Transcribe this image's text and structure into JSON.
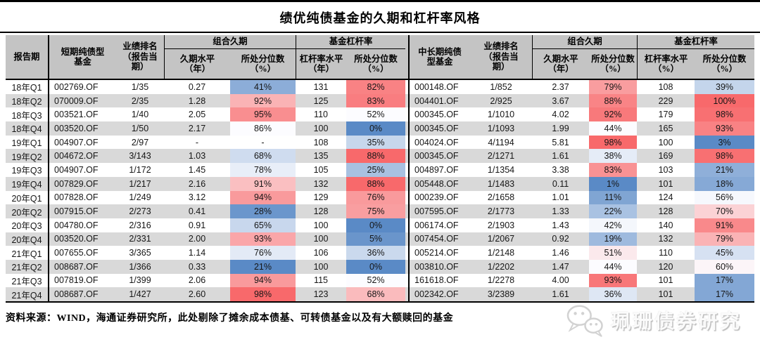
{
  "title": "绩优纯债基金的久期和杠杆率风格",
  "source_note": "资料来源：WIND，海通证券研究所，此处剔除了摊余成本债基、可转债基金以及有大额赎回的基金",
  "watermark": {
    "icon": "wechat-icon",
    "text": "珮珊债券研究"
  },
  "colors": {
    "scale_low": "#5A8AC6",
    "scale_mid": "#FCFCFF",
    "scale_high": "#F8696B",
    "header_bg": "#C4C4C4",
    "stripe_bg": "#D9D9D9",
    "rule": "#000000"
  },
  "table": {
    "headers": {
      "period": "报告期",
      "left": {
        "fund": "短期纯债型\n基金",
        "rank": "业绩排名\n（报告当\n期）",
        "dur_group": "组合久期",
        "dur_level": "久期水平\n（年）",
        "dur_pct": "所处分位数\n（%）",
        "lev_group": "基金杠杆率",
        "lev_level": "杠杆率水平\n（年）",
        "lev_pct": "所处分位数\n（%）"
      },
      "right": {
        "fund": "中长期纯债\n型基金",
        "rank": "业绩排名\n（报告当\n期）",
        "dur_group": "组合久期",
        "dur_level": "久期水平\n（年）",
        "dur_pct": "所处分位数\n（%）",
        "lev_group": "基金杠杆率",
        "lev_level": "杠杆率水平\n（%）",
        "lev_pct": "所处分位数\n（%）"
      }
    },
    "rows": [
      {
        "period": "18年Q1",
        "s": {
          "code": "002769.OF",
          "rank": "1/35",
          "dur": "0.27",
          "dur_pct": 41,
          "lev": "131",
          "lev_pct": 82
        },
        "l": {
          "code": "000148.OF",
          "rank": "1/852",
          "dur": "2.37",
          "dur_pct": 79,
          "lev": "108",
          "lev_pct": 39
        }
      },
      {
        "period": "18年Q2",
        "s": {
          "code": "070009.OF",
          "rank": "2/35",
          "dur": "1.28",
          "dur_pct": 92,
          "lev": "125",
          "lev_pct": 83
        },
        "l": {
          "code": "004401.OF",
          "rank": "2/925",
          "dur": "3.67",
          "dur_pct": 88,
          "lev": "229",
          "lev_pct": 100
        }
      },
      {
        "period": "18年Q3",
        "s": {
          "code": "003521.OF",
          "rank": "1/40",
          "dur": "2.05",
          "dur_pct": 95,
          "lev": "110",
          "lev_pct": 52
        },
        "l": {
          "code": "000345.OF",
          "rank": "1/1010",
          "dur": "4.02",
          "dur_pct": 92,
          "lev": "179",
          "lev_pct": 98
        }
      },
      {
        "period": "18年Q4",
        "s": {
          "code": "003520.OF",
          "rank": "1/50",
          "dur": "2.17",
          "dur_pct": 86,
          "lev": "100",
          "lev_pct": 0
        },
        "l": {
          "code": "000345.OF",
          "rank": "1/1093",
          "dur": "1.99",
          "dur_pct": 44,
          "lev": "165",
          "lev_pct": 93
        }
      },
      {
        "period": "19年Q1",
        "s": {
          "code": "004907.OF",
          "rank": "2/97",
          "dur": "-",
          "dur_pct": null,
          "lev": "108",
          "lev_pct": 35
        },
        "l": {
          "code": "004024.OF",
          "rank": "4/1194",
          "dur": "5.81",
          "dur_pct": 98,
          "lev": "100",
          "lev_pct": 3
        }
      },
      {
        "period": "19年Q2",
        "s": {
          "code": "004672.OF",
          "rank": "3/143",
          "dur": "1.03",
          "dur_pct": 68,
          "lev": "135",
          "lev_pct": 88
        },
        "l": {
          "code": "000345.OF",
          "rank": "2/1271",
          "dur": "1.61",
          "dur_pct": 38,
          "lev": "169",
          "lev_pct": 98
        }
      },
      {
        "period": "19年Q3",
        "s": {
          "code": "004907.OF",
          "rank": "1/172",
          "dur": "1.45",
          "dur_pct": 78,
          "lev": "105",
          "lev_pct": 25
        },
        "l": {
          "code": "004897.OF",
          "rank": "1/1354",
          "dur": "3.38",
          "dur_pct": 83,
          "lev": "103",
          "lev_pct": 21
        }
      },
      {
        "period": "19年Q4",
        "s": {
          "code": "007829.OF",
          "rank": "1/217",
          "dur": "2.16",
          "dur_pct": 91,
          "lev": "132",
          "lev_pct": 88
        },
        "l": {
          "code": "005448.OF",
          "rank": "1/1483",
          "dur": "0.11",
          "dur_pct": 1,
          "lev": "101",
          "lev_pct": 18
        }
      },
      {
        "period": "20年Q1",
        "s": {
          "code": "007828.OF",
          "rank": "1/249",
          "dur": "3.12",
          "dur_pct": 94,
          "lev": "129",
          "lev_pct": 76
        },
        "l": {
          "code": "000239.OF",
          "rank": "2/1658",
          "dur": "1.01",
          "dur_pct": 11,
          "lev": "124",
          "lev_pct": 56
        }
      },
      {
        "period": "20年Q2",
        "s": {
          "code": "007915.OF",
          "rank": "2/273",
          "dur": "0.41",
          "dur_pct": 28,
          "lev": "128",
          "lev_pct": 75
        },
        "l": {
          "code": "007595.OF",
          "rank": "2/1773",
          "dur": "1.33",
          "dur_pct": 22,
          "lev": "128",
          "lev_pct": 70
        }
      },
      {
        "period": "20年Q3",
        "s": {
          "code": "004780.OF",
          "rank": "2/316",
          "dur": "0.91",
          "dur_pct": 65,
          "lev": "100",
          "lev_pct": 0
        },
        "l": {
          "code": "006174.OF",
          "rank": "2/1903",
          "dur": "1.43",
          "dur_pct": 42,
          "lev": "140",
          "lev_pct": 91
        }
      },
      {
        "period": "20年Q4",
        "s": {
          "code": "003520.OF",
          "rank": "2/331",
          "dur": "2.00",
          "dur_pct": 93,
          "lev": "100",
          "lev_pct": 5
        },
        "l": {
          "code": "007454.OF",
          "rank": "1/2067",
          "dur": "0.92",
          "dur_pct": 19,
          "lev": "132",
          "lev_pct": 79
        }
      },
      {
        "period": "21年Q1",
        "s": {
          "code": "007655.OF",
          "rank": "3/365",
          "dur": "1.14",
          "dur_pct": 76,
          "lev": "106",
          "lev_pct": 36
        },
        "l": {
          "code": "005214.OF",
          "rank": "1/2148",
          "dur": "1.46",
          "dur_pct": 51,
          "lev": "110",
          "lev_pct": 45
        }
      },
      {
        "period": "21年Q2",
        "s": {
          "code": "008687.OF",
          "rank": "1/366",
          "dur": "0.33",
          "dur_pct": 21,
          "lev": "100",
          "lev_pct": 0
        },
        "l": {
          "code": "003810.OF",
          "rank": "1/2202",
          "dur": "1.47",
          "dur_pct": 44,
          "lev": "120",
          "lev_pct": 60
        }
      },
      {
        "period": "21年Q3",
        "s": {
          "code": "007819.OF",
          "rank": "1/399",
          "dur": "2.06",
          "dur_pct": 94,
          "lev": "115",
          "lev_pct": 52
        },
        "l": {
          "code": "161618.OF",
          "rank": "1/2278",
          "dur": "4.00",
          "dur_pct": 93,
          "lev": "101",
          "lev_pct": 17
        }
      },
      {
        "period": "21年Q4",
        "s": {
          "code": "008687.OF",
          "rank": "1/427",
          "dur": "2.60",
          "dur_pct": 98,
          "lev": "123",
          "lev_pct": 68
        },
        "l": {
          "code": "002342.OF",
          "rank": "3/2389",
          "dur": "1.61",
          "dur_pct": 36,
          "lev": "101",
          "lev_pct": 17
        }
      }
    ]
  }
}
